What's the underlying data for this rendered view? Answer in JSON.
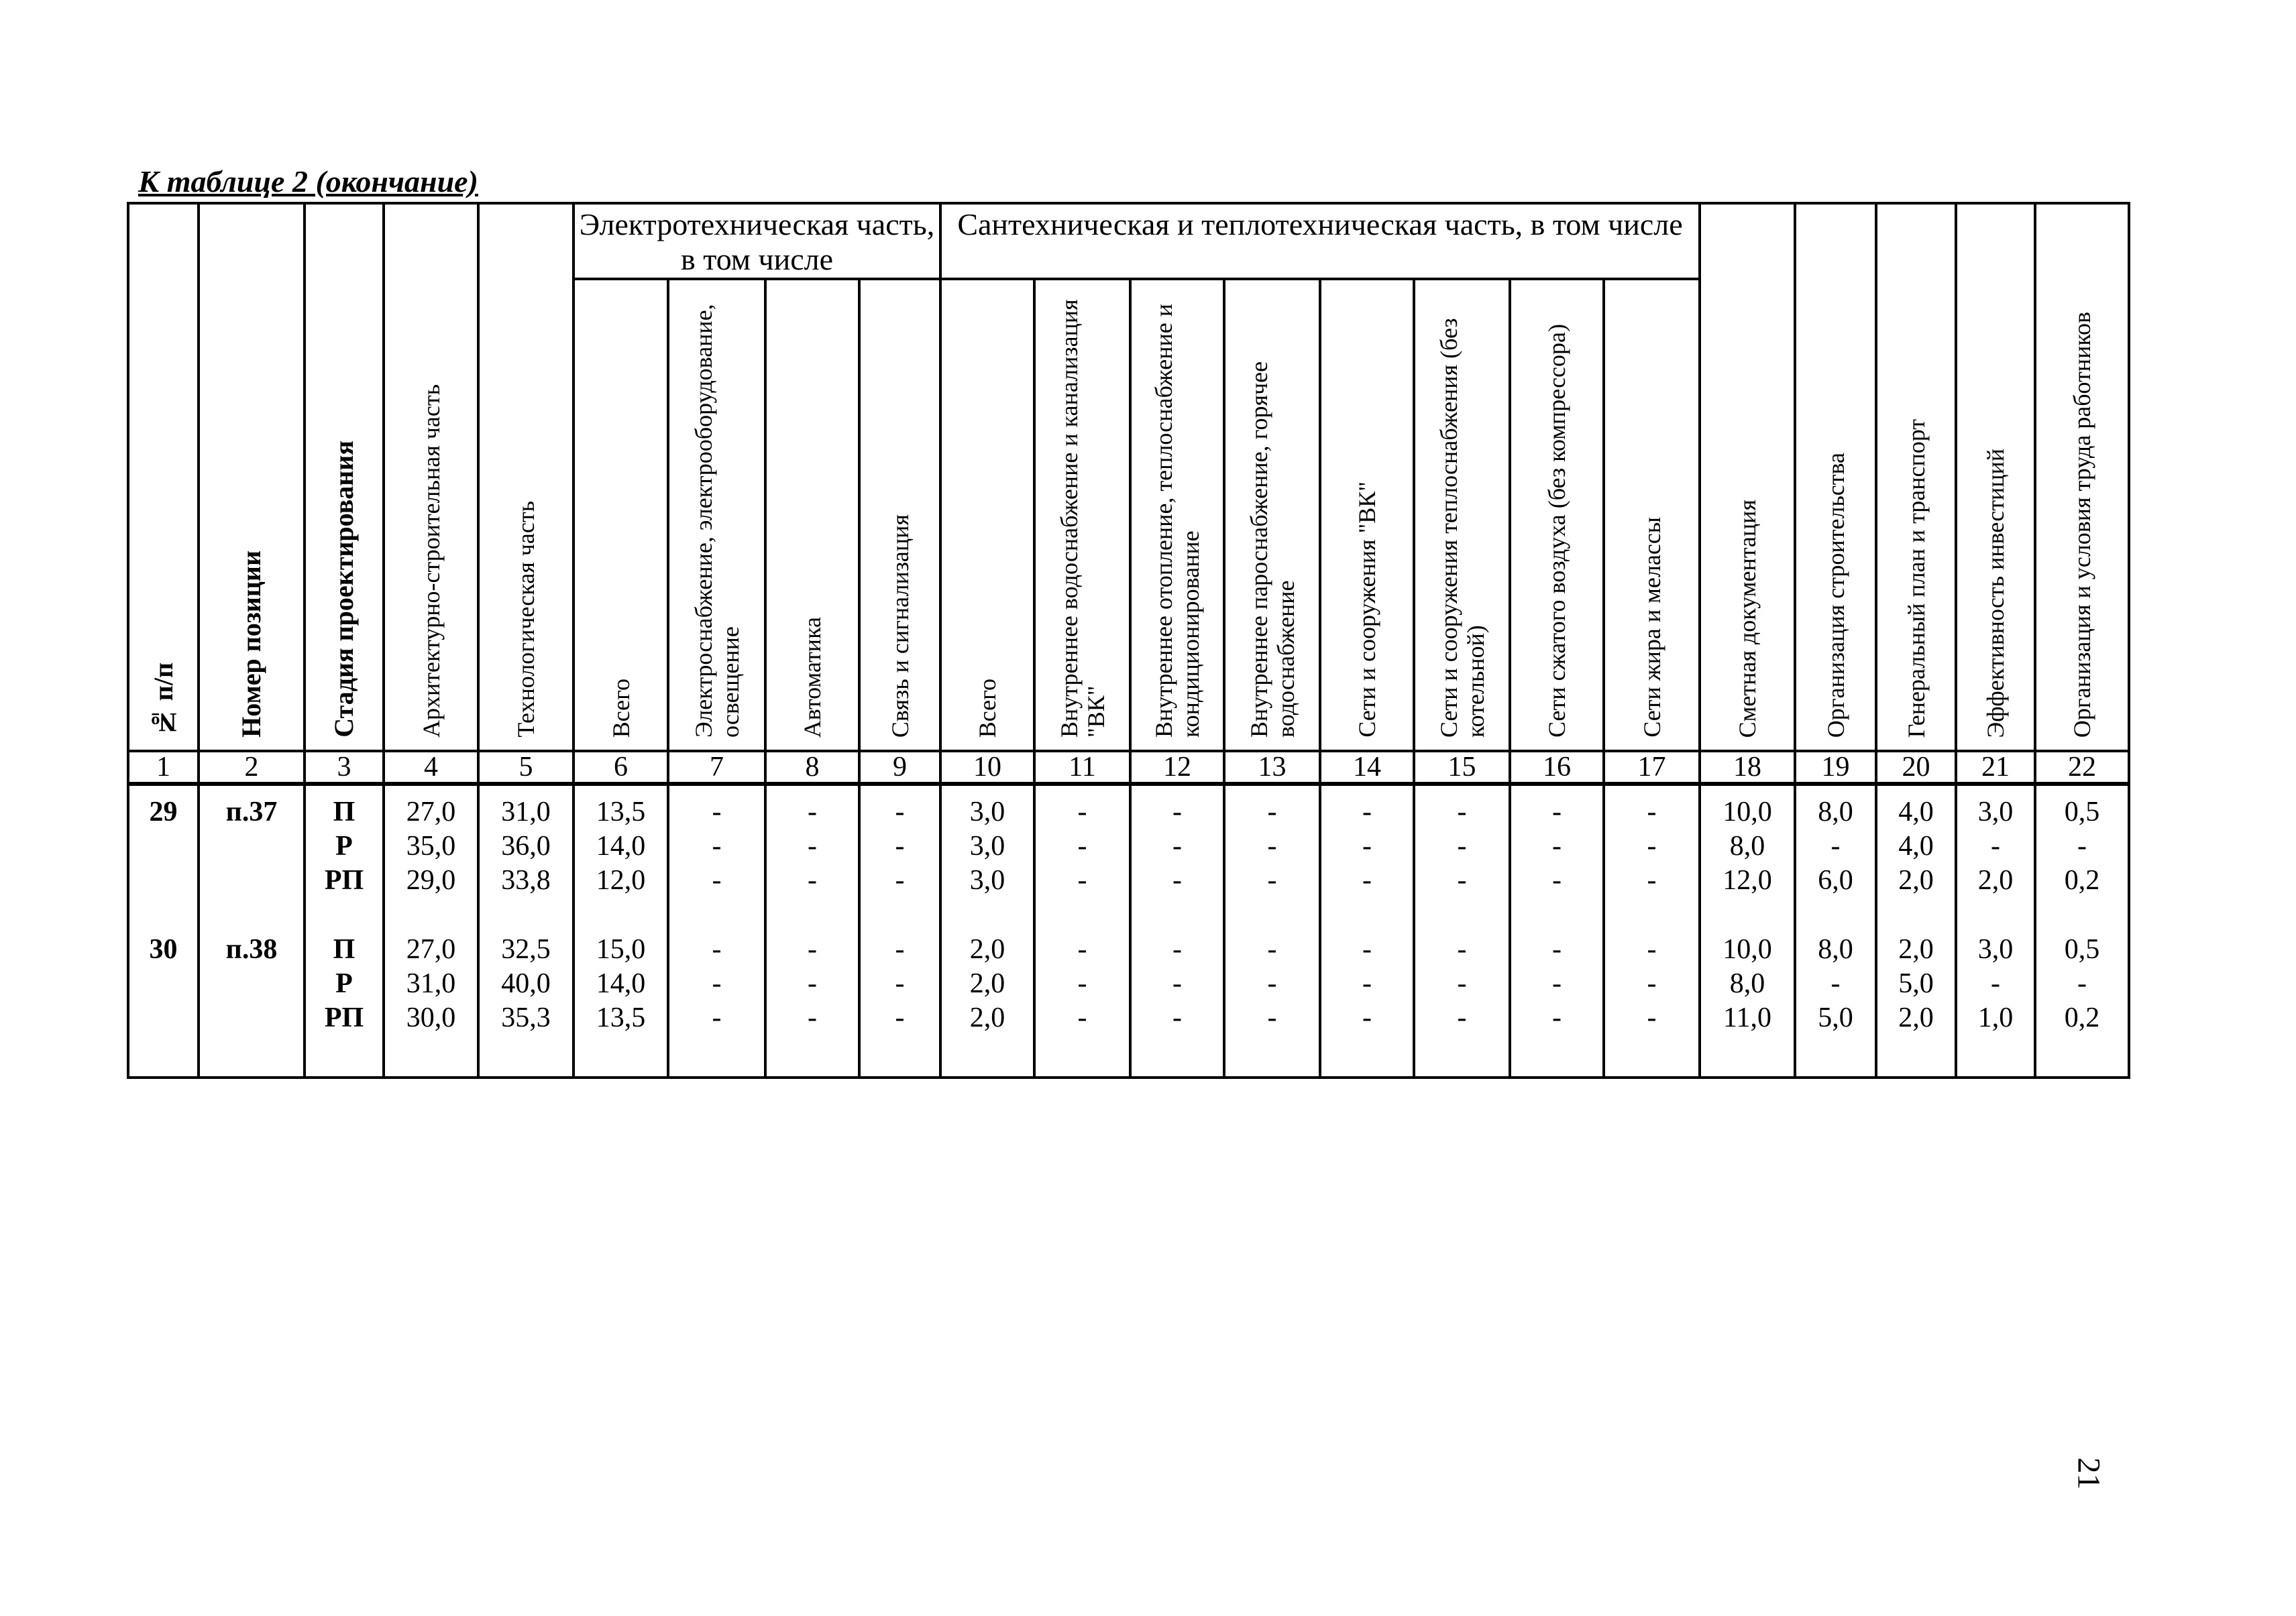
{
  "caption": "К таблице 2 (окончание)",
  "page_number": "21",
  "header": {
    "group_electro": "Электротехническая часть, в том числе",
    "group_santech": "Сантехническая и теплотехническая часть, в том числе",
    "columns": [
      "№ п/п",
      "Номер позиции",
      "Стадия проектирования",
      "Архитектурно-строительная часть",
      "Технологическая часть",
      "Всего",
      "Электроснабжение, электрооборудование, освещение",
      "Автоматика",
      "Связь и сигнализация",
      "Всего",
      "Внутреннее водоснабжение и канализация \"ВК\"",
      "Внутреннее отопление, теплоснабжение и кондиционирование",
      "Внутреннее пароснабжение, горячее водоснабжение",
      "Сети и сооружения \"ВК\"",
      "Сети и сооружения теплоснабжения (без котельной)",
      "Сети сжатого воздуха (без компрессора)",
      "Сети жира и мелассы",
      "Сметная документация",
      "Организация строительства",
      "Генеральный план и транспорт",
      "Эффективность инвестиций",
      "Организация и условия труда работников"
    ],
    "numbers": [
      "1",
      "2",
      "3",
      "4",
      "5",
      "6",
      "7",
      "8",
      "9",
      "10",
      "11",
      "12",
      "13",
      "14",
      "15",
      "16",
      "17",
      "18",
      "19",
      "20",
      "21",
      "22"
    ]
  },
  "rows": [
    {
      "num": "29",
      "pos": "п.37",
      "stages": [
        [
          "П",
          "27,0",
          "31,0",
          "13,5",
          "-",
          "-",
          "-",
          "3,0",
          "-",
          "-",
          "-",
          "-",
          "-",
          "-",
          "-",
          "10,0",
          "8,0",
          "4,0",
          "3,0",
          "0,5"
        ],
        [
          "Р",
          "35,0",
          "36,0",
          "14,0",
          "-",
          "-",
          "-",
          "3,0",
          "-",
          "-",
          "-",
          "-",
          "-",
          "-",
          "-",
          "8,0",
          "-",
          "4,0",
          "-",
          "-"
        ],
        [
          "РП",
          "29,0",
          "33,8",
          "12,0",
          "-",
          "-",
          "-",
          "3,0",
          "-",
          "-",
          "-",
          "-",
          "-",
          "-",
          "-",
          "12,0",
          "6,0",
          "2,0",
          "2,0",
          "0,2"
        ]
      ]
    },
    {
      "num": "30",
      "pos": "п.38",
      "stages": [
        [
          "П",
          "27,0",
          "32,5",
          "15,0",
          "-",
          "-",
          "-",
          "2,0",
          "-",
          "-",
          "-",
          "-",
          "-",
          "-",
          "-",
          "10,0",
          "8,0",
          "2,0",
          "3,0",
          "0,5"
        ],
        [
          "Р",
          "31,0",
          "40,0",
          "14,0",
          "-",
          "-",
          "-",
          "2,0",
          "-",
          "-",
          "-",
          "-",
          "-",
          "-",
          "-",
          "8,0",
          "-",
          "5,0",
          "-",
          "-"
        ],
        [
          "РП",
          "30,0",
          "35,3",
          "13,5",
          "-",
          "-",
          "-",
          "2,0",
          "-",
          "-",
          "-",
          "-",
          "-",
          "-",
          "-",
          "11,0",
          "5,0",
          "2,0",
          "1,0",
          "0,2"
        ]
      ]
    }
  ]
}
